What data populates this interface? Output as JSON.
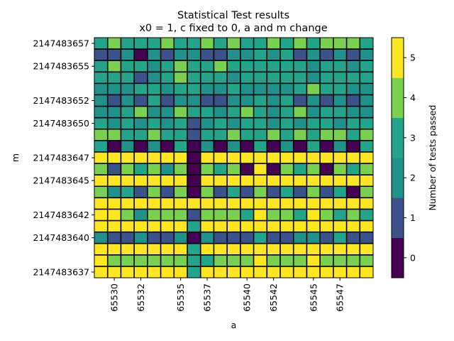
{
  "chart_data": {
    "type": "heatmap",
    "title": "Statistical Test results",
    "subtitle": "x0 = 1, c fixed to 0, a and m change",
    "xlabel": "a",
    "ylabel": "m",
    "colorbar_label": "Number of tests passed",
    "colorbar_ticks": [
      0,
      1,
      2,
      3,
      4,
      5
    ],
    "colorbar_range": [
      -0.5,
      5.5
    ],
    "colors": [
      "#440154",
      "#3b528b",
      "#21918c",
      "#24a58b",
      "#7ad151",
      "#fde725"
    ],
    "x": [
      65529,
      65530,
      65531,
      65532,
      65533,
      65534,
      65535,
      65536,
      65537,
      65538,
      65539,
      65540,
      65541,
      65542,
      65543,
      65544,
      65545,
      65546,
      65547,
      65548,
      65549
    ],
    "y": [
      2147483657,
      2147483656,
      2147483655,
      2147483654,
      2147483653,
      2147483652,
      2147483651,
      2147483650,
      2147483649,
      2147483648,
      2147483647,
      2147483646,
      2147483645,
      2147483644,
      2147483643,
      2147483642,
      2147483641,
      2147483640,
      2147483639,
      2147483638,
      2147483637
    ],
    "x_tick_labels": [
      "65530",
      "65532",
      "65535",
      "65537",
      "65540",
      "65542",
      "65545",
      "65547"
    ],
    "y_tick_labels": [
      "2147483657",
      "2147483655",
      "2147483652",
      "2147483650",
      "2147483647",
      "2147483645",
      "2147483642",
      "2147483640",
      "2147483637"
    ],
    "z": [
      [
        3,
        4,
        3,
        3,
        3,
        4,
        3,
        3,
        4,
        3,
        4,
        3,
        3,
        4,
        3,
        4,
        3,
        4,
        4,
        4,
        3
      ],
      [
        1,
        1,
        2,
        0,
        2,
        1,
        2,
        2,
        1,
        1,
        2,
        2,
        3,
        2,
        3,
        1,
        2,
        1,
        2,
        1,
        2
      ],
      [
        3,
        4,
        3,
        3,
        2,
        3,
        4,
        3,
        3,
        4,
        3,
        3,
        3,
        3,
        3,
        3,
        2,
        3,
        3,
        2,
        3
      ],
      [
        3,
        3,
        3,
        1,
        2,
        3,
        4,
        3,
        3,
        3,
        2,
        3,
        3,
        3,
        3,
        3,
        2,
        3,
        3,
        3,
        3
      ],
      [
        2,
        2,
        2,
        3,
        3,
        2,
        3,
        3,
        2,
        2,
        3,
        2,
        2,
        2,
        2,
        3,
        4,
        3,
        3,
        2,
        2
      ],
      [
        2,
        1,
        2,
        1,
        3,
        1,
        2,
        2,
        1,
        1,
        2,
        2,
        3,
        2,
        3,
        1,
        2,
        1,
        2,
        1,
        2
      ],
      [
        2,
        2,
        3,
        4,
        2,
        2,
        4,
        3,
        3,
        2,
        3,
        4,
        3,
        2,
        3,
        4,
        2,
        3,
        3,
        2,
        2
      ],
      [
        3,
        2,
        3,
        2,
        3,
        2,
        3,
        1,
        2,
        3,
        2,
        3,
        3,
        2,
        3,
        2,
        3,
        3,
        2,
        3,
        3
      ],
      [
        4,
        4,
        3,
        3,
        4,
        3,
        3,
        1,
        3,
        3,
        4,
        3,
        3,
        4,
        3,
        4,
        3,
        4,
        4,
        3,
        4
      ],
      [
        3,
        0,
        2,
        0,
        2,
        0,
        3,
        0,
        2,
        0,
        2,
        0,
        3,
        0,
        2,
        0,
        3,
        0,
        2,
        0,
        3
      ],
      [
        5,
        5,
        5,
        5,
        5,
        5,
        5,
        0,
        5,
        5,
        5,
        5,
        5,
        5,
        5,
        5,
        5,
        5,
        5,
        5,
        5
      ],
      [
        4,
        1,
        4,
        3,
        4,
        2,
        4,
        0,
        4,
        3,
        4,
        0,
        5,
        0,
        4,
        3,
        4,
        0,
        4,
        3,
        4
      ],
      [
        5,
        5,
        5,
        5,
        5,
        5,
        5,
        0,
        5,
        5,
        5,
        5,
        5,
        5,
        5,
        5,
        5,
        5,
        5,
        5,
        5
      ],
      [
        4,
        2,
        3,
        1,
        4,
        1,
        4,
        0,
        4,
        1,
        3,
        1,
        4,
        1,
        3,
        1,
        4,
        1,
        3,
        0,
        4
      ],
      [
        5,
        5,
        5,
        5,
        5,
        5,
        5,
        5,
        5,
        5,
        5,
        5,
        5,
        5,
        5,
        5,
        5,
        5,
        5,
        5,
        5
      ],
      [
        5,
        5,
        4,
        2,
        4,
        4,
        4,
        1,
        4,
        4,
        4,
        3,
        5,
        4,
        4,
        3,
        5,
        4,
        3,
        4,
        3
      ],
      [
        5,
        5,
        5,
        5,
        5,
        5,
        5,
        3,
        5,
        5,
        5,
        5,
        5,
        5,
        5,
        5,
        5,
        5,
        5,
        5,
        5
      ],
      [
        2,
        1,
        1,
        2,
        1,
        1,
        2,
        0,
        2,
        1,
        1,
        1,
        3,
        1,
        1,
        2,
        2,
        1,
        3,
        1,
        1
      ],
      [
        5,
        5,
        5,
        5,
        5,
        5,
        5,
        3,
        5,
        5,
        5,
        5,
        5,
        5,
        5,
        5,
        5,
        5,
        5,
        5,
        5
      ],
      [
        5,
        4,
        4,
        4,
        4,
        4,
        4,
        3,
        3,
        4,
        4,
        4,
        5,
        4,
        4,
        4,
        5,
        4,
        4,
        4,
        4
      ],
      [
        5,
        5,
        5,
        5,
        5,
        5,
        5,
        3,
        5,
        5,
        5,
        5,
        5,
        5,
        5,
        5,
        5,
        5,
        5,
        5,
        5
      ]
    ]
  }
}
